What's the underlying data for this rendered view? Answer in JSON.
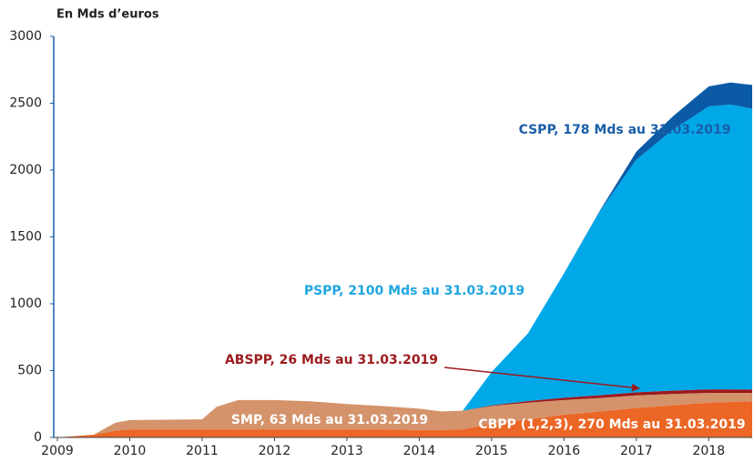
{
  "chart_data": {
    "type": "stacked_area",
    "ylabel": "En Mds d’euros",
    "x": [
      2009,
      2009.5,
      2009.8,
      2010,
      2011,
      2011.2,
      2011.5,
      2012,
      2012.5,
      2013,
      2013.5,
      2014,
      2014.3,
      2014.6,
      2015,
      2015.5,
      2016,
      2016.5,
      2017,
      2017.5,
      2018,
      2018.3,
      2018.6
    ],
    "series": [
      {
        "name": "CBPP",
        "color": "#ec6625",
        "values": [
          0,
          20,
          50,
          60,
          60,
          60,
          60,
          60,
          60,
          60,
          60,
          55,
          55,
          60,
          100,
          135,
          170,
          195,
          220,
          240,
          260,
          265,
          270
        ]
      },
      {
        "name": "SMP",
        "color": "#d4936b",
        "values": [
          0,
          0,
          60,
          70,
          75,
          170,
          220,
          220,
          210,
          190,
          175,
          160,
          140,
          140,
          135,
          125,
          110,
          100,
          95,
          85,
          73,
          68,
          63
        ]
      },
      {
        "name": "ABSPP",
        "color": "#9b1b1e",
        "values": [
          0,
          0,
          0,
          0,
          0,
          0,
          0,
          0,
          0,
          0,
          0,
          0,
          0,
          0,
          5,
          12,
          18,
          21,
          23,
          25,
          27,
          27,
          26
        ]
      },
      {
        "name": "PSPP",
        "color": "#00a8e8",
        "values": [
          0,
          0,
          0,
          0,
          0,
          0,
          0,
          0,
          0,
          0,
          0,
          0,
          0,
          0,
          250,
          505,
          930,
          1380,
          1740,
          1950,
          2116,
          2130,
          2100
        ]
      },
      {
        "name": "CSPP",
        "color": "#0b5aa6",
        "values": [
          0,
          0,
          0,
          0,
          0,
          0,
          0,
          0,
          0,
          0,
          0,
          0,
          0,
          0,
          0,
          0,
          0,
          5,
          60,
          100,
          150,
          165,
          178
        ]
      }
    ],
    "annotations": [
      "CSPP, 178 Mds au 31.03.2019",
      "PSPP, 2100 Mds au 31.03.2019",
      "ABSPP, 26 Mds au 31.03.2019",
      "SMP, 63 Mds au 31.03.2019",
      "CBPP (1,2,3), 270 Mds au 31.03.2019"
    ],
    "xlim": [
      2009,
      2018.6
    ],
    "xticks": [
      2009,
      2010,
      2011,
      2012,
      2013,
      2014,
      2015,
      2016,
      2017,
      2018
    ],
    "ylim": [
      0,
      3000
    ],
    "yticks": [
      0,
      500,
      1000,
      1500,
      2000,
      2500,
      3000
    ],
    "grid": false
  }
}
